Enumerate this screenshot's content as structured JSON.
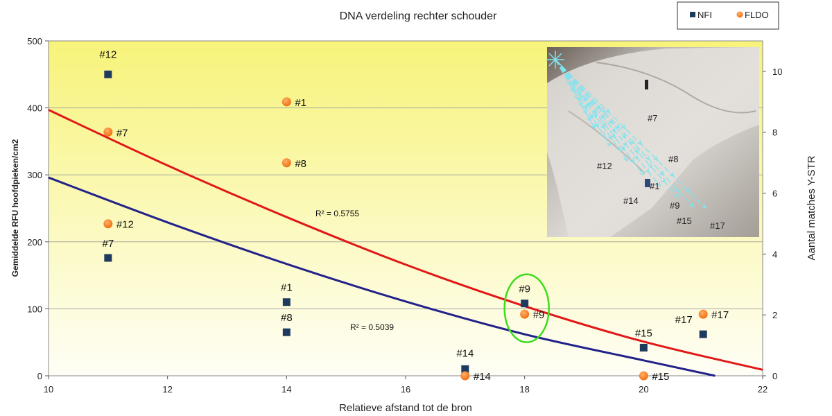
{
  "chart_data": {
    "type": "scatter",
    "title": "DNA verdeling rechter schouder",
    "xlabel": "Relatieve afstand tot de bron",
    "ylabel": "Gemiddelde RFU hoofdpieken/cm2",
    "y2label": "Aantal matches Y-STR",
    "xlim": [
      10,
      22
    ],
    "ylim": [
      0,
      500
    ],
    "y2lim": [
      0,
      11
    ],
    "x_ticks": [
      10,
      12,
      14,
      16,
      18,
      20,
      22
    ],
    "y_ticks": [
      0,
      100,
      200,
      300,
      400,
      500
    ],
    "y2_ticks": [
      0,
      2,
      4,
      6,
      8,
      10
    ],
    "grid": true,
    "legend_position": "top-right",
    "series": [
      {
        "name": "NFI",
        "color": "#1f3a5f",
        "marker": "square",
        "points": [
          {
            "x": 11,
            "y": 450,
            "label": "#12"
          },
          {
            "x": 11,
            "y": 176,
            "label": "#7"
          },
          {
            "x": 14,
            "y": 110,
            "label": "#1"
          },
          {
            "x": 14,
            "y": 65,
            "label": "#8"
          },
          {
            "x": 17,
            "y": 10,
            "label": "#14"
          },
          {
            "x": 18,
            "y": 108,
            "label": "#9"
          },
          {
            "x": 20,
            "y": 42,
            "label": "#15"
          },
          {
            "x": 21,
            "y": 62,
            "label": "#17"
          }
        ],
        "trend": {
          "color": "#22228a",
          "r2_label": "R² = 0.5039",
          "curve": [
            [
              10,
              296
            ],
            [
              12,
              229
            ],
            [
              14,
              167
            ],
            [
              16,
              111
            ],
            [
              18,
              62
            ],
            [
              20,
              23
            ],
            [
              21.2,
              0
            ]
          ]
        }
      },
      {
        "name": "FLDO",
        "color": "#f07010",
        "marker": "circle",
        "points": [
          {
            "x": 14,
            "y": 409,
            "label": "#1"
          },
          {
            "x": 11,
            "y": 364,
            "label": "#7"
          },
          {
            "x": 14,
            "y": 318,
            "label": "#8"
          },
          {
            "x": 11,
            "y": 227,
            "label": "#12"
          },
          {
            "x": 18,
            "y": 92,
            "label": "#9"
          },
          {
            "x": 21,
            "y": 92,
            "label": "#17"
          },
          {
            "x": 17,
            "y": 0,
            "label": "#14"
          },
          {
            "x": 20,
            "y": 0,
            "label": "#15"
          }
        ],
        "trend": {
          "color": "#e01818",
          "r2_label": "R² = 0.5755",
          "curve": [
            [
              10,
              397
            ],
            [
              12,
              314
            ],
            [
              14,
              237
            ],
            [
              16,
              166
            ],
            [
              18,
              104
            ],
            [
              20,
              51
            ],
            [
              22,
              9
            ]
          ]
        }
      }
    ],
    "annotations": {
      "highlight": {
        "target": "#9",
        "color": "#3ddc1c"
      },
      "inset_photo": {
        "labels": [
          "#7",
          "#8",
          "#12",
          "#1",
          "#14",
          "#9",
          "#15",
          "#17"
        ]
      }
    }
  }
}
